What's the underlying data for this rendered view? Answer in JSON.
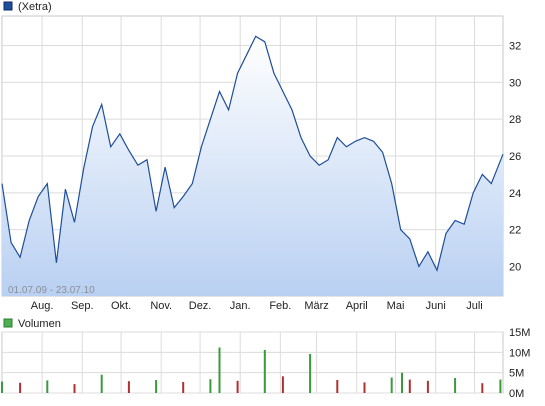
{
  "chart_data": [
    {
      "type": "area",
      "legend": {
        "label": "(Xetra)",
        "color": "#1f4e9b"
      },
      "date_range_label": "01.07.09 - 23.07.10",
      "x_tick_labels": [
        "Aug.",
        "Sep.",
        "Okt.",
        "Nov.",
        "Dez.",
        "Jan.",
        "Feb.",
        "März",
        "April",
        "Mai",
        "Juni",
        "Juli"
      ],
      "y_tick_labels": [
        "20",
        "22",
        "24",
        "26",
        "28",
        "30",
        "32"
      ],
      "ylim": [
        18.4,
        33.6
      ],
      "grid": true,
      "line_color": "#1f4e9b",
      "fill_top_color": "#ffffff",
      "fill_bottom_color": "#b9d0f2",
      "series": [
        {
          "x": [
            "2009-07-01",
            "2009-07-08",
            "2009-07-15",
            "2009-07-22",
            "2009-07-29",
            "2009-08-05",
            "2009-08-12",
            "2009-08-19",
            "2009-08-26",
            "2009-09-02",
            "2009-09-09",
            "2009-09-16",
            "2009-09-23",
            "2009-09-30",
            "2009-10-07",
            "2009-10-14",
            "2009-10-21",
            "2009-10-28",
            "2009-11-04",
            "2009-11-11",
            "2009-11-18",
            "2009-11-25",
            "2009-12-02",
            "2009-12-09",
            "2009-12-16",
            "2009-12-23",
            "2009-12-30",
            "2010-01-06",
            "2010-01-13",
            "2010-01-20",
            "2010-01-27",
            "2010-02-03",
            "2010-02-10",
            "2010-02-17",
            "2010-02-24",
            "2010-03-03",
            "2010-03-10",
            "2010-03-17",
            "2010-03-24",
            "2010-03-31",
            "2010-04-07",
            "2010-04-14",
            "2010-04-21",
            "2010-04-28",
            "2010-05-05",
            "2010-05-12",
            "2010-05-19",
            "2010-05-26",
            "2010-06-02",
            "2010-06-09",
            "2010-06-16",
            "2010-06-23",
            "2010-06-30",
            "2010-07-07",
            "2010-07-14",
            "2010-07-23"
          ],
          "y": [
            24.5,
            21.3,
            20.5,
            22.5,
            23.8,
            24.5,
            20.2,
            24.2,
            22.4,
            25.3,
            27.6,
            28.8,
            26.5,
            27.2,
            26.3,
            25.5,
            25.8,
            23.0,
            25.4,
            23.2,
            23.8,
            24.5,
            26.5,
            28.0,
            29.5,
            28.5,
            30.5,
            31.5,
            32.5,
            32.2,
            30.5,
            29.5,
            28.5,
            27.0,
            26.0,
            25.5,
            25.8,
            27.0,
            26.5,
            26.8,
            27.0,
            26.8,
            26.2,
            24.5,
            22.0,
            21.5,
            20.0,
            20.8,
            19.8,
            21.8,
            22.5,
            22.3,
            24.0,
            25.0,
            24.5,
            26.1
          ]
        }
      ]
    },
    {
      "type": "bar",
      "legend": {
        "label": "Volumen",
        "color": "#4caf50"
      },
      "y_tick_labels": [
        "0M",
        "5M",
        "10M",
        "15M"
      ],
      "ylim": [
        0,
        15
      ],
      "grid": true,
      "up_color": "#3a9b3a",
      "down_color": "#b03030",
      "series": [
        {
          "x": [
            "2009-07-01",
            "2009-07-15",
            "2009-08-05",
            "2009-08-26",
            "2009-09-16",
            "2009-10-07",
            "2009-10-28",
            "2009-11-18",
            "2009-12-09",
            "2009-12-16",
            "2009-12-30",
            "2010-01-20",
            "2010-02-03",
            "2010-02-24",
            "2010-03-17",
            "2010-04-07",
            "2010-04-28",
            "2010-05-06",
            "2010-05-12",
            "2010-05-26",
            "2010-06-16",
            "2010-07-07",
            "2010-07-21"
          ],
          "values": [
            2.8,
            2.5,
            3.1,
            2.2,
            4.5,
            2.9,
            3.2,
            2.7,
            3.4,
            11.2,
            3.0,
            10.6,
            4.1,
            9.6,
            3.2,
            2.6,
            3.8,
            5.0,
            3.3,
            3.0,
            3.7,
            2.4,
            3.3
          ]
        }
      ]
    }
  ]
}
